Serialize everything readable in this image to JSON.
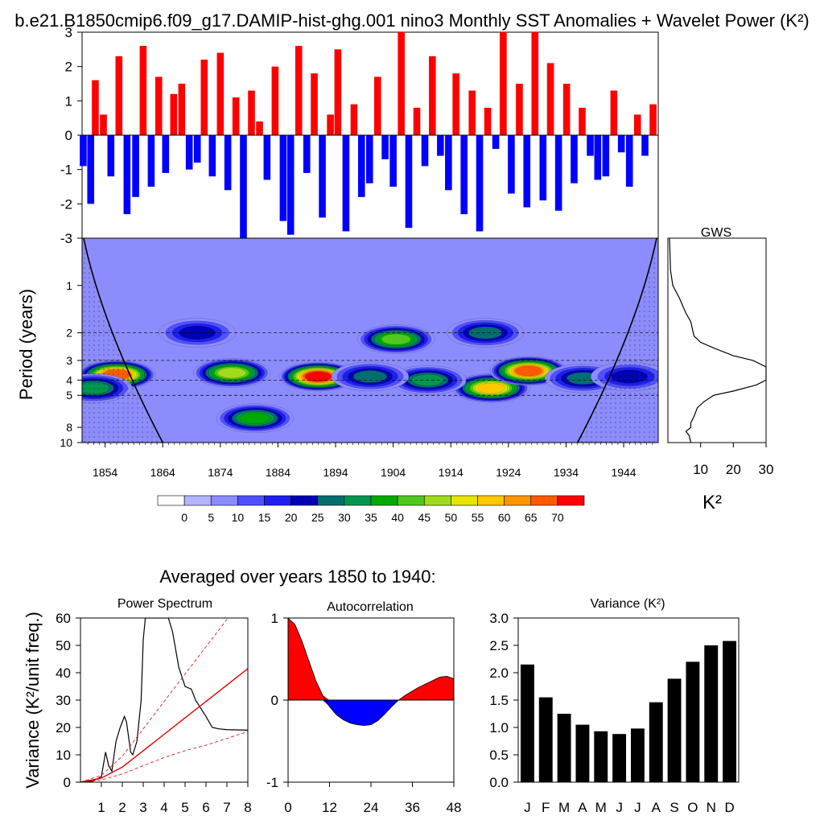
{
  "title": "b.e21.B1850cmip6.f09_g17.DAMIP-hist-ghg.001 nino3 Monthly SST Anomalies + Wavelet Power (K²)",
  "colors": {
    "positive": "#ff0000",
    "negative": "#0000ff",
    "axis": "#000000",
    "cone": "#000000"
  },
  "chart_data": [
    {
      "id": "sst_anomaly",
      "type": "bar",
      "ylim": [
        -3,
        3
      ],
      "yticks": [
        3,
        2,
        1,
        0,
        -1,
        -2,
        -3
      ],
      "x_range": [
        1850,
        1950
      ],
      "series": [
        {
          "x": [
            1850.2,
            1851.5,
            1852.3,
            1853.7,
            1855.0,
            1856.4,
            1857.8,
            1859.3,
            1860.6,
            1862.0,
            1863.3,
            1864.5,
            1865.9,
            1867.3,
            1868.6,
            1870.0,
            1871.2,
            1872.6,
            1874.0,
            1875.3,
            1876.7,
            1878.0,
            1879.4,
            1880.8,
            1882.1,
            1883.5,
            1884.9,
            1886.2,
            1887.6,
            1889.0,
            1890.3,
            1891.7,
            1893.1,
            1894.4,
            1895.8,
            1897.2,
            1898.5,
            1899.9,
            1901.3,
            1902.6,
            1904.0,
            1905.4,
            1906.7,
            1908.1,
            1909.5,
            1910.8,
            1912.2,
            1913.6,
            1914.9,
            1916.3,
            1917.7,
            1919.0,
            1920.4,
            1921.8,
            1923.1,
            1924.5,
            1925.9,
            1927.2,
            1928.6,
            1930.0,
            1931.3,
            1932.7,
            1934.1,
            1935.4,
            1936.8,
            1938.2,
            1939.5,
            1940.9,
            1942.3,
            1943.6,
            1945.0,
            1946.4,
            1947.7,
            1949.1
          ],
          "values": [
            -0.9,
            -2.0,
            1.6,
            0.6,
            -1.2,
            2.3,
            -2.3,
            -1.8,
            2.6,
            -1.5,
            1.7,
            -1.1,
            1.2,
            1.5,
            -1.0,
            -0.8,
            2.2,
            -1.2,
            2.4,
            -1.6,
            1.1,
            -3.0,
            1.3,
            0.4,
            -1.3,
            2.0,
            -2.5,
            -2.9,
            2.6,
            -1.1,
            1.8,
            -2.4,
            0.6,
            2.5,
            -2.8,
            0.9,
            -1.8,
            -1.4,
            1.7,
            -0.7,
            -1.5,
            3.0,
            -2.7,
            0.8,
            -0.9,
            2.3,
            -0.6,
            -1.6,
            1.8,
            -2.3,
            1.3,
            -2.8,
            0.8,
            -0.4,
            3.0,
            -1.7,
            1.5,
            -2.1,
            3.0,
            -1.9,
            2.1,
            -2.2,
            1.5,
            -1.4,
            0.8,
            -0.6,
            -1.3,
            -1.2,
            1.3,
            -0.5,
            -1.5,
            0.6,
            -0.6,
            0.9
          ]
        }
      ]
    },
    {
      "id": "wavelet_power",
      "type": "heatmap",
      "ylabel": "Period (years)",
      "yticks": [
        1,
        2,
        3,
        4,
        5,
        8,
        10
      ],
      "xticks": [
        1854,
        1864,
        1874,
        1884,
        1894,
        1904,
        1914,
        1924,
        1934,
        1944
      ],
      "x_range": [
        1850,
        1950
      ],
      "period_range": [
        0.5,
        10
      ],
      "reference_periods": [
        2,
        3,
        4,
        5
      ],
      "background_level": 5,
      "hotspots": [
        {
          "year": 1856.0,
          "period": 3.7,
          "level": 65
        },
        {
          "year": 1876.0,
          "period": 3.6,
          "level": 45
        },
        {
          "year": 1891.0,
          "period": 3.8,
          "level": 70
        },
        {
          "year": 1904.5,
          "period": 2.2,
          "level": 40
        },
        {
          "year": 1921.0,
          "period": 4.5,
          "level": 55
        },
        {
          "year": 1927.5,
          "period": 3.5,
          "level": 65
        },
        {
          "year": 1937.0,
          "period": 3.9,
          "level": 25
        },
        {
          "year": 1880.0,
          "period": 7.0,
          "level": 35
        },
        {
          "year": 1910.0,
          "period": 4.0,
          "level": 30
        },
        {
          "year": 1920.0,
          "period": 2.0,
          "level": 25
        },
        {
          "year": 1870.0,
          "period": 2.0,
          "level": 20
        },
        {
          "year": 1900.0,
          "period": 3.8,
          "level": 25
        },
        {
          "year": 1945.0,
          "period": 3.8,
          "level": 20
        },
        {
          "year": 1852.0,
          "period": 4.5,
          "level": 30
        }
      ]
    },
    {
      "id": "gws",
      "type": "line",
      "title": "GWS",
      "xticks": [
        10,
        20,
        30
      ],
      "xlabel": "K²",
      "xlim": [
        0,
        30
      ],
      "period": [
        0.5,
        0.8,
        1.0,
        1.2,
        1.5,
        1.7,
        1.9,
        2.1,
        2.3,
        2.5,
        2.8,
        3.0,
        3.3,
        3.6,
        4.0,
        4.3,
        4.7,
        5.0,
        5.5,
        6.0,
        6.8,
        7.5,
        8.0,
        8.5,
        9.0,
        10.0
      ],
      "power": [
        0.5,
        0.8,
        1.5,
        3.5,
        5.5,
        7.0,
        7.5,
        8.0,
        10.0,
        14.0,
        20.0,
        26.0,
        30.0,
        30.0,
        30.0,
        27.0,
        20.0,
        14.0,
        11.0,
        9.0,
        8.0,
        7.0,
        7.0,
        5.5,
        6.5,
        7.0
      ]
    },
    {
      "id": "colorbar",
      "type": "legend",
      "labels": [
        "0",
        "5",
        "10",
        "15",
        "20",
        "25",
        "30",
        "35",
        "40",
        "45",
        "50",
        "55",
        "60",
        "65",
        "70"
      ],
      "colors": [
        "#ffffff",
        "#b4b4ff",
        "#8c8cff",
        "#5050ff",
        "#1e1ef0",
        "#0000b4",
        "#006e6e",
        "#009650",
        "#00aa00",
        "#50c81e",
        "#a0dc1e",
        "#e6e600",
        "#ffc800",
        "#ff9600",
        "#ff5a00",
        "#ff0000"
      ]
    },
    {
      "id": "power_spectrum",
      "type": "line",
      "title": "Power Spectrum",
      "ylabel": "Variance (K²/unit freq.)",
      "ylim": [
        0,
        60
      ],
      "yticks": [
        0,
        10,
        20,
        30,
        40,
        50,
        60
      ],
      "xlim": [
        0,
        8
      ],
      "xticks": [
        1,
        2,
        3,
        4,
        5,
        6,
        7,
        8
      ],
      "series": [
        {
          "name": "spectrum",
          "x": [
            0.2,
            0.6,
            1.0,
            1.2,
            1.35,
            1.5,
            1.7,
            1.9,
            2.1,
            2.2,
            2.4,
            2.5,
            2.7,
            2.9,
            3.0,
            3.1,
            3.3,
            4.2,
            4.4,
            4.7,
            5.0,
            5.3,
            5.5,
            6.0,
            6.3,
            6.6,
            7.0,
            8.0
          ],
          "values": [
            0.2,
            0.4,
            2.0,
            11.0,
            6.0,
            4.0,
            15.0,
            20.0,
            24.0,
            22.0,
            11.0,
            10.0,
            15.0,
            30.0,
            52.0,
            60.0,
            60.0,
            60.0,
            55.0,
            42.0,
            35.0,
            34.0,
            30.0,
            24.0,
            20.0,
            19.5,
            19.2,
            19.0
          ]
        },
        {
          "name": "red noise",
          "x": [
            0,
            1,
            2,
            3,
            4,
            5,
            6,
            7,
            8
          ],
          "values": [
            0,
            1.5,
            5.5,
            11.5,
            17.5,
            23.5,
            29.5,
            35.5,
            41.5
          ]
        },
        {
          "name": "upper",
          "x": [
            0,
            1,
            2,
            3,
            4,
            5,
            6,
            7,
            8
          ],
          "values": [
            0,
            2.5,
            9.5,
            19.5,
            29.5,
            39.5,
            49.5,
            59.5,
            69.5
          ]
        },
        {
          "name": "lower",
          "x": [
            0,
            1,
            2,
            3,
            4,
            5,
            6,
            7,
            8
          ],
          "values": [
            0,
            0.8,
            3.0,
            6.0,
            9.0,
            11.5,
            13.5,
            16.0,
            18.5
          ]
        }
      ]
    },
    {
      "id": "autocorrelation",
      "type": "area",
      "title": "Autocorrelation",
      "ylim": [
        -1,
        1
      ],
      "yticks": [
        -1,
        0,
        1
      ],
      "xlim": [
        0,
        48
      ],
      "xticks": [
        0,
        12,
        24,
        36,
        48
      ],
      "x": [
        0,
        2,
        4,
        6,
        8,
        10,
        12,
        14,
        16,
        18,
        20,
        22,
        24,
        26,
        28,
        30,
        32,
        34,
        36,
        38,
        40,
        42,
        44,
        46,
        48
      ],
      "values": [
        1.0,
        0.92,
        0.72,
        0.48,
        0.24,
        0.06,
        -0.08,
        -0.18,
        -0.24,
        -0.28,
        -0.3,
        -0.31,
        -0.3,
        -0.25,
        -0.17,
        -0.08,
        0.0,
        0.06,
        0.11,
        0.16,
        0.2,
        0.24,
        0.28,
        0.29,
        0.26
      ]
    },
    {
      "id": "variance",
      "type": "bar",
      "title": "Variance (K²)",
      "ylim": [
        0,
        3
      ],
      "yticks": [
        "0.0",
        "0.5",
        "1.0",
        "1.5",
        "2.0",
        "2.5",
        "3.0"
      ],
      "categories": [
        "J",
        "F",
        "M",
        "A",
        "M",
        "J",
        "J",
        "A",
        "S",
        "O",
        "N",
        "D"
      ],
      "values": [
        2.15,
        1.55,
        1.25,
        1.05,
        0.93,
        0.88,
        0.98,
        1.46,
        1.89,
        2.2,
        2.5,
        2.58
      ]
    }
  ],
  "subtitle": "Averaged over years 1850 to 1940:"
}
